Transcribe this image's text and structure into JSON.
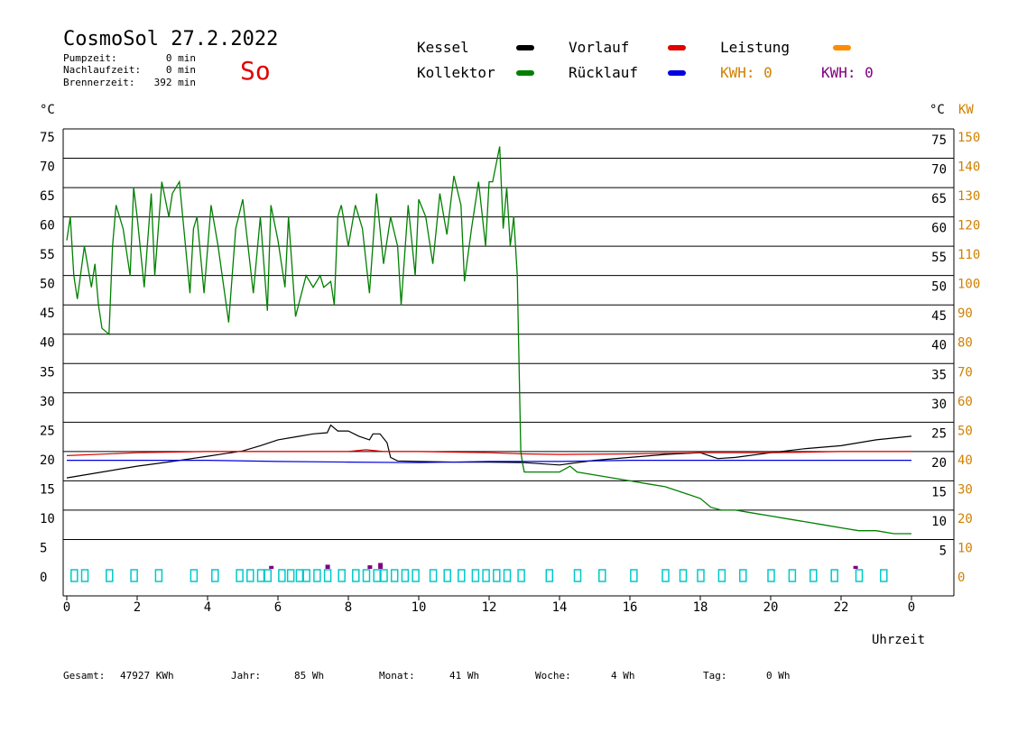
{
  "header": {
    "title": "CosmoSol 27.2.2022",
    "day": "So",
    "stats": [
      {
        "label": "Pumpzeit:",
        "value": "0 min"
      },
      {
        "label": "Nachlaufzeit:",
        "value": "0 min"
      },
      {
        "label": "Brennerzeit:",
        "value": "392 min"
      }
    ]
  },
  "legend": {
    "items": [
      {
        "label": "Kessel",
        "color": "#000000"
      },
      {
        "label": "Kollektor",
        "color": "#008000"
      },
      {
        "label": "Vorlauf",
        "color": "#e00000"
      },
      {
        "label": "Rücklauf",
        "color": "#0000e0"
      },
      {
        "label": "Leistung",
        "color": "#ff8c00"
      }
    ],
    "kwh": [
      {
        "text": "KWH: 0",
        "color": "#d08000"
      },
      {
        "text": "KWH: 0",
        "color": "#800080"
      }
    ]
  },
  "colors": {
    "kessel": "#000000",
    "kollektor": "#008000",
    "vorlauf": "#e00000",
    "ruecklauf": "#0000e0",
    "leistung": "#d08000",
    "pump": "#00c8c8",
    "kwh2": "#800080"
  },
  "axes": {
    "left_unit": "°C",
    "right_unit": "°C",
    "right2_unit": "KW",
    "xlabel": "Uhrzeit",
    "y_ticks": [
      "0",
      "5",
      "10",
      "15",
      "20",
      "25",
      "30",
      "35",
      "40",
      "45",
      "50",
      "55",
      "60",
      "65",
      "70",
      "75"
    ],
    "kw_ticks": [
      "0",
      "10",
      "20",
      "30",
      "40",
      "50",
      "60",
      "70",
      "80",
      "90",
      "100",
      "110",
      "120",
      "130",
      "140",
      "150"
    ],
    "x_ticks": [
      "0",
      "2",
      "4",
      "6",
      "8",
      "10",
      "12",
      "14",
      "16",
      "18",
      "20",
      "22",
      "0"
    ]
  },
  "footer": [
    {
      "label": "Gesamt:",
      "value": "47927 KWh"
    },
    {
      "label": "Jahr:",
      "value": "85 Wh"
    },
    {
      "label": "Monat:",
      "value": "41 Wh"
    },
    {
      "label": "Woche:",
      "value": "4 Wh"
    },
    {
      "label": "Tag:",
      "value": "0 Wh"
    }
  ],
  "chart_data": {
    "type": "line",
    "title": "CosmoSol 27.2.2022",
    "xlabel": "Uhrzeit",
    "ylabel": "°C",
    "xlim": [
      0,
      24
    ],
    "ylim": [
      0,
      75
    ],
    "y2lim": [
      0,
      150
    ],
    "grid": true,
    "series": [
      {
        "name": "Kessel",
        "x": [
          0,
          1,
          2,
          3,
          4,
          5,
          5.5,
          6,
          6.5,
          7,
          7.4,
          7.5,
          7.7,
          8,
          8.3,
          8.6,
          8.7,
          8.9,
          9.1,
          9.2,
          9.4,
          10,
          11,
          12,
          13,
          14,
          15,
          16,
          17,
          18,
          18.5,
          19,
          20,
          21,
          22,
          23,
          24
        ],
        "y": [
          15.5,
          16.5,
          17.5,
          18.3,
          19.2,
          20.1,
          21,
          22,
          22.5,
          23,
          23.2,
          24.5,
          23.5,
          23.5,
          22.6,
          22,
          23,
          23,
          21.5,
          19,
          18.4,
          18.3,
          18.2,
          18.2,
          18.1,
          17.7,
          18.5,
          19,
          19.5,
          19.8,
          18.8,
          19,
          19.8,
          20.5,
          21,
          22,
          22.6
        ]
      },
      {
        "name": "Kollektor",
        "x": [
          0,
          0.1,
          0.2,
          0.3,
          0.5,
          0.7,
          0.8,
          0.9,
          1,
          1.2,
          1.3,
          1.4,
          1.6,
          1.8,
          1.9,
          2,
          2.2,
          2.4,
          2.5,
          2.7,
          2.9,
          3,
          3.2,
          3.5,
          3.6,
          3.7,
          3.9,
          4.1,
          4.3,
          4.6,
          4.8,
          5,
          5.3,
          5.5,
          5.7,
          5.8,
          6,
          6.2,
          6.3,
          6.5,
          6.8,
          7,
          7.2,
          7.3,
          7.5,
          7.6,
          7.7,
          7.8,
          8,
          8.2,
          8.4,
          8.6,
          8.8,
          9,
          9.2,
          9.4,
          9.5,
          9.7,
          9.9,
          10,
          10.2,
          10.4,
          10.6,
          10.8,
          11,
          11.2,
          11.3,
          11.5,
          11.7,
          11.9,
          12,
          12.1,
          12.3,
          12.4,
          12.5,
          12.6,
          12.7,
          12.8,
          12.9,
          12.95,
          13,
          13.1,
          13.5,
          14,
          14.3,
          14.5,
          15,
          15.5,
          16,
          16.5,
          17,
          17.5,
          18,
          18.3,
          18.6,
          19,
          19.5,
          20,
          20.5,
          21,
          21.5,
          22,
          22.5,
          23,
          23.5,
          24
        ],
        "y": [
          56,
          60,
          50,
          46,
          55,
          48,
          52,
          45,
          41,
          40,
          55,
          62,
          58,
          50,
          65,
          60,
          48,
          64,
          50,
          66,
          60,
          64,
          66,
          47,
          58,
          60,
          47,
          62,
          55,
          42,
          58,
          63,
          47,
          60,
          44,
          62,
          56,
          48,
          60,
          43,
          50,
          48,
          50,
          48,
          49,
          45,
          60,
          62,
          55,
          62,
          58,
          47,
          64,
          52,
          60,
          55,
          45,
          62,
          50,
          63,
          60,
          52,
          64,
          57,
          67,
          62,
          49,
          58,
          66,
          55,
          66,
          66,
          72,
          58,
          65,
          55,
          60,
          50,
          20,
          18,
          16.5,
          16.5,
          16.5,
          16.5,
          17.5,
          16.5,
          16,
          15.5,
          15,
          14.5,
          14,
          13,
          12,
          10.5,
          10,
          10,
          9.5,
          9,
          8.5,
          8,
          7.5,
          7,
          6.5,
          6.5,
          6,
          6
        ]
      },
      {
        "name": "Vorlauf",
        "x": [
          0,
          2,
          4,
          6,
          8,
          8.5,
          9,
          10,
          12,
          13,
          14,
          16,
          18,
          20,
          22,
          24
        ],
        "y": [
          19.3,
          19.8,
          20,
          20,
          20,
          20.3,
          20,
          20,
          19.8,
          19.6,
          19.5,
          19.6,
          19.8,
          19.8,
          20,
          20
        ]
      },
      {
        "name": "Rücklauf",
        "x": [
          0,
          2,
          4,
          6,
          8,
          10,
          12,
          14,
          16,
          18,
          20,
          22,
          24
        ],
        "y": [
          18.5,
          18.5,
          18.5,
          18.3,
          18.2,
          18.1,
          18.3,
          18.3,
          18.5,
          18.5,
          18.5,
          18.5,
          18.5
        ]
      },
      {
        "name": "Leistung",
        "x": [
          0,
          24
        ],
        "y": [
          0,
          0
        ]
      }
    ]
  }
}
